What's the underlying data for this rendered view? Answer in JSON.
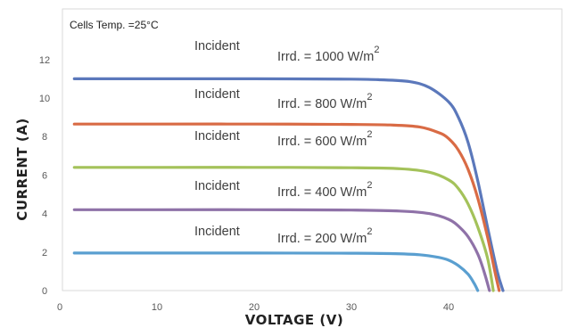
{
  "chart_data": {
    "type": "line",
    "title": "",
    "annotation": "Cells Temp. =25°C",
    "xlabel": "VOLTAGE (V)",
    "ylabel": "CURRENT (A)",
    "xlim": [
      0,
      50
    ],
    "ylim": [
      0,
      12.5
    ],
    "x_ticks": [
      {
        "value": 0,
        "label": "0"
      },
      {
        "value": 10,
        "label": "10"
      },
      {
        "value": 20,
        "label": "20"
      },
      {
        "value": 30,
        "label": "30"
      },
      {
        "value": 40,
        "label": "40"
      }
    ],
    "y_ticks": [
      {
        "value": 0,
        "label": "0"
      },
      {
        "value": 2,
        "label": "2"
      },
      {
        "value": 4,
        "label": "4"
      },
      {
        "value": 6,
        "label": "6"
      },
      {
        "value": 8,
        "label": "8"
      },
      {
        "value": 10,
        "label": "10"
      },
      {
        "value": 12,
        "label": "12"
      }
    ],
    "series": [
      {
        "name": "Irrd. = 1000 W/m2",
        "color": "#5b78bb",
        "incident": "Incident",
        "irrd": "Irrd. = 1000 W/m",
        "sup": "2",
        "x": [
          1.5,
          10,
          20,
          30,
          33,
          36,
          38,
          40,
          41,
          42,
          43,
          44,
          45,
          45.6
        ],
        "y": [
          11.0,
          11.0,
          11.0,
          10.98,
          10.95,
          10.85,
          10.55,
          9.8,
          9.0,
          7.7,
          5.7,
          3.3,
          1.0,
          0
        ]
      },
      {
        "name": "Irrd. = 800 W/m2",
        "color": "#d96b45",
        "incident": "Incident",
        "irrd": "Irrd. = 800  W/m",
        "sup": "2",
        "x": [
          1.5,
          10,
          20,
          30,
          34,
          37,
          39,
          40,
          41,
          42,
          43,
          44,
          44.8,
          45.2
        ],
        "y": [
          8.65,
          8.65,
          8.65,
          8.63,
          8.6,
          8.5,
          8.2,
          7.9,
          7.3,
          6.3,
          4.8,
          2.8,
          0.9,
          0
        ]
      },
      {
        "name": "Irrd. = 600 W/m2",
        "color": "#a4c25a",
        "incident": "Incident",
        "irrd": "Irrd. = 600  W/m",
        "sup": "2",
        "x": [
          1.5,
          10,
          20,
          30,
          35,
          38,
          40,
          41,
          42,
          43,
          44,
          44.6
        ],
        "y": [
          6.4,
          6.4,
          6.4,
          6.38,
          6.33,
          6.15,
          5.75,
          5.3,
          4.5,
          3.3,
          1.7,
          0
        ]
      },
      {
        "name": "Irrd. = 400 W/m2",
        "color": "#8f72a8",
        "incident": "Incident",
        "irrd": "Irrd. = 400  W/m",
        "sup": "2",
        "x": [
          1.5,
          10,
          20,
          30,
          35,
          38,
          40,
          41,
          42,
          43,
          43.7,
          44.2
        ],
        "y": [
          4.2,
          4.2,
          4.2,
          4.18,
          4.13,
          4.0,
          3.7,
          3.35,
          2.8,
          1.9,
          0.9,
          0
        ]
      },
      {
        "name": "Irrd. = 200 W/m2",
        "color": "#5a9fd0",
        "incident": "Incident",
        "irrd": "Irrd. = 200  W/m",
        "sup": "2",
        "x": [
          1.5,
          10,
          20,
          30,
          34,
          37,
          39,
          40,
          41,
          42,
          42.6,
          43
        ],
        "y": [
          1.95,
          1.95,
          1.95,
          1.94,
          1.92,
          1.86,
          1.72,
          1.58,
          1.3,
          0.85,
          0.4,
          0
        ]
      }
    ]
  }
}
